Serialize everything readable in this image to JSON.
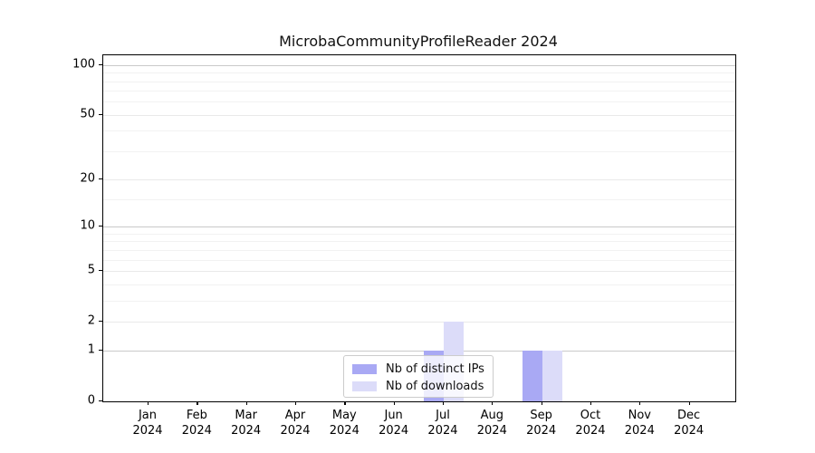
{
  "chart_data": {
    "type": "bar",
    "title": "MicrobaCommunityProfileReader 2024",
    "categories": [
      "Jan 2024",
      "Feb 2024",
      "Mar 2024",
      "Apr 2024",
      "May 2024",
      "Jun 2024",
      "Jul 2024",
      "Aug 2024",
      "Sep 2024",
      "Oct 2024",
      "Nov 2024",
      "Dec 2024"
    ],
    "series": [
      {
        "name": "Nb of distinct IPs",
        "color": "#a9a9f4",
        "values": [
          0,
          0,
          0,
          0,
          0,
          0,
          1,
          0,
          1,
          0,
          0,
          0
        ]
      },
      {
        "name": "Nb of downloads",
        "color": "#dcdcf9",
        "values": [
          0,
          0,
          0,
          0,
          0,
          0,
          2,
          0,
          1,
          0,
          0,
          0
        ]
      }
    ],
    "xlabel": "",
    "ylabel": "",
    "yscale": "log1p",
    "ylim": [
      0,
      115
    ],
    "yticks": [
      0,
      1,
      2,
      5,
      10,
      20,
      50,
      100
    ],
    "minor_yticks": [
      3,
      4,
      6,
      7,
      8,
      9,
      15,
      30,
      40,
      60,
      70,
      80,
      90
    ],
    "grid": "horizontal",
    "legend_position": "lower center"
  }
}
